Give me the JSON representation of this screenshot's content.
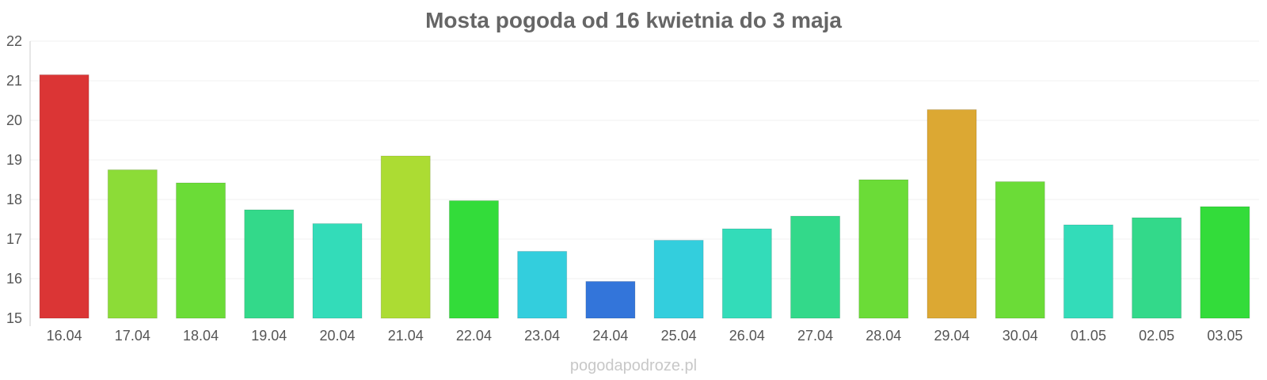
{
  "chart_data": {
    "type": "bar",
    "title": "Mosta pogoda od 16 kwietnia do 3 maja",
    "xlabel": "",
    "ylabel": "",
    "categories": [
      "16.04",
      "17.04",
      "18.04",
      "19.04",
      "20.04",
      "21.04",
      "22.04",
      "23.04",
      "24.04",
      "25.04",
      "26.04",
      "27.04",
      "28.04",
      "29.04",
      "30.04",
      "01.05",
      "02.05",
      "03.05"
    ],
    "values": [
      21.15,
      18.75,
      18.42,
      17.74,
      17.39,
      19.1,
      17.97,
      16.69,
      15.93,
      16.97,
      17.26,
      17.58,
      18.5,
      20.27,
      18.45,
      17.36,
      17.54,
      17.82
    ],
    "colors": [
      "#db3535",
      "#8cdc37",
      "#6bdc37",
      "#33d98a",
      "#33dcb9",
      "#acdc33",
      "#33dc3a",
      "#33cedd",
      "#3375da",
      "#33cedd",
      "#33dcb9",
      "#33d98a",
      "#6bdc37",
      "#dca833",
      "#6bdc37",
      "#33dcb9",
      "#33d98a",
      "#33dc3a"
    ],
    "ylim": [
      15,
      22
    ],
    "yticks": [
      15,
      16,
      17,
      18,
      19,
      20,
      21,
      22
    ],
    "grid": true,
    "legend": "none"
  },
  "watermark": "pogodapodroze.pl"
}
